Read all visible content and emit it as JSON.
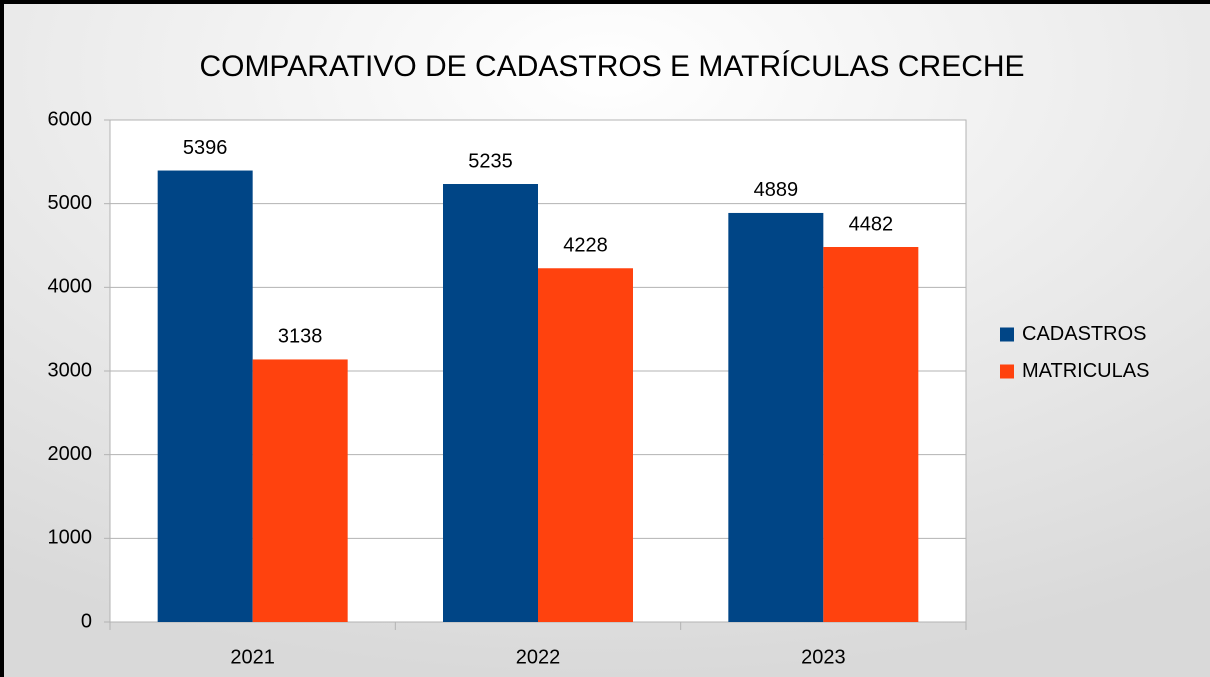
{
  "chart_data": {
    "type": "bar",
    "title": "COMPARATIVO DE CADASTROS E MATRÍCULAS  CRECHE",
    "categories": [
      "2021",
      "2022",
      "2023"
    ],
    "series": [
      {
        "name": "CADASTROS",
        "color": "#004586",
        "values": [
          5396,
          5235,
          4889
        ]
      },
      {
        "name": "MATRICULAS",
        "color": "#ff420e",
        "values": [
          3138,
          4228,
          4482
        ]
      }
    ],
    "ylim": [
      0,
      6000
    ],
    "yticks": [
      0,
      1000,
      2000,
      3000,
      4000,
      5000,
      6000
    ],
    "grid": true,
    "legend": "right"
  }
}
